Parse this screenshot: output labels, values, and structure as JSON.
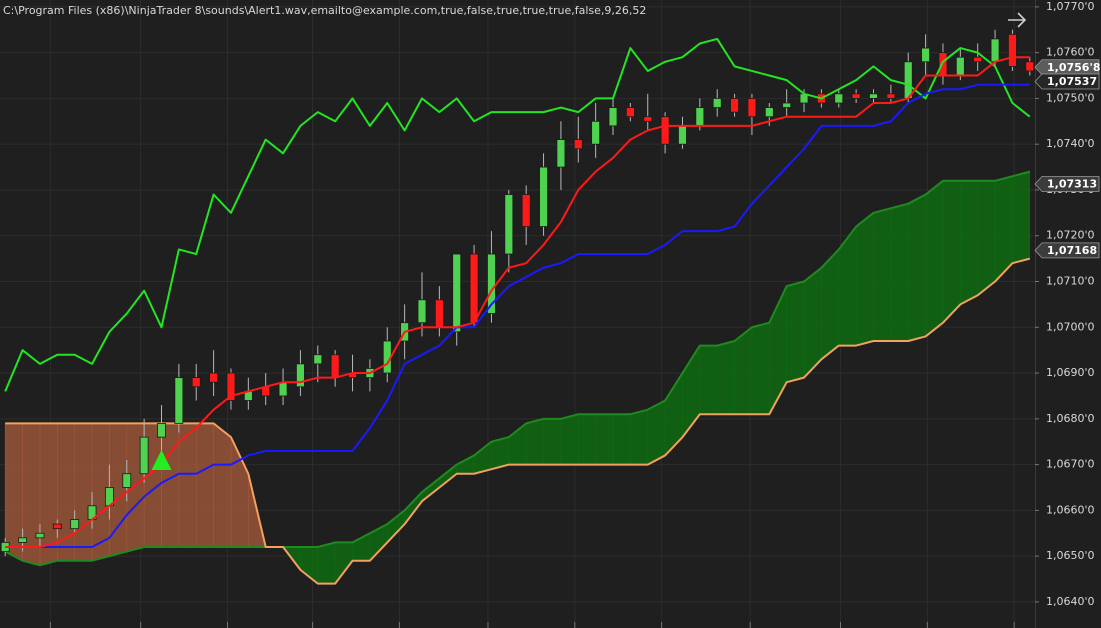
{
  "chart_data": {
    "type": "candlestick",
    "title": "C:\\Program Files (x86)\\NinjaTrader 8\\sounds\\Alert1.wav,emailto@example.com,true,false,true,true,true,false,9,26,52",
    "xlim": [
      -0.3,
      59.3
    ],
    "xticks": [
      2.6,
      7.8,
      12.8,
      17.7,
      22.7,
      27.8,
      32.8,
      37.8,
      42.9,
      48.1,
      53.1,
      58.1
    ],
    "ylim": [
      1.06343,
      1.07715
    ],
    "yticks": [
      {
        "value": 1.064,
        "label": "1,0640'0"
      },
      {
        "value": 1.065,
        "label": "1,0650'0"
      },
      {
        "value": 1.066,
        "label": "1,0660'0"
      },
      {
        "value": 1.067,
        "label": "1,0670'0"
      },
      {
        "value": 1.068,
        "label": "1,0680'0"
      },
      {
        "value": 1.069,
        "label": "1,0690'0"
      },
      {
        "value": 1.07,
        "label": "1,0700'0"
      },
      {
        "value": 1.071,
        "label": "1,0710'0"
      },
      {
        "value": 1.072,
        "label": "1,0720'0"
      },
      {
        "value": 1.073,
        "label": "1,0730'0"
      },
      {
        "value": 1.074,
        "label": "1,0740'0"
      },
      {
        "value": 1.075,
        "label": "1,0750'0"
      },
      {
        "value": 1.076,
        "label": "1,0760'0"
      },
      {
        "value": 1.077,
        "label": "1,0770'0"
      }
    ],
    "grid": true,
    "up_color": "#4fd24f",
    "down_color": "#ff1a1a",
    "open": [
      1.0651,
      1.0653,
      1.0654,
      1.0657,
      1.0656,
      1.0658,
      1.0661,
      1.0665,
      1.0668,
      1.0676,
      1.0679,
      1.0689,
      1.069,
      1.069,
      1.0684,
      1.0687,
      1.0685,
      1.0687,
      1.0692,
      1.0694,
      1.069,
      1.0689,
      1.069,
      1.0697,
      1.0701,
      1.0706,
      1.0699,
      1.0716,
      1.0703,
      1.0716,
      1.0729,
      1.0722,
      1.0735,
      1.0741,
      1.074,
      1.0744,
      1.0748,
      1.0746,
      1.0746,
      1.074,
      1.0744,
      1.0748,
      1.075,
      1.075,
      1.0746,
      1.0748,
      1.0749,
      1.0751,
      1.0749,
      1.0751,
      1.075,
      1.0751,
      1.075,
      1.0758,
      1.076,
      1.0755,
      1.0759,
      1.0758,
      1.0764,
      1.0758
    ],
    "high": [
      1.0654,
      1.0656,
      1.0657,
      1.0658,
      1.066,
      1.0664,
      1.067,
      1.0671,
      1.068,
      1.0683,
      1.0692,
      1.0692,
      1.0695,
      1.0691,
      1.0689,
      1.069,
      1.0691,
      1.0695,
      1.0696,
      1.0695,
      1.0694,
      1.0693,
      1.07,
      1.0705,
      1.0712,
      1.0709,
      1.0716,
      1.0718,
      1.0721,
      1.073,
      1.0731,
      1.0738,
      1.0745,
      1.0746,
      1.0749,
      1.075,
      1.0749,
      1.0751,
      1.0747,
      1.0746,
      1.075,
      1.0752,
      1.0751,
      1.0751,
      1.0749,
      1.0752,
      1.0752,
      1.0752,
      1.0752,
      1.0752,
      1.0752,
      1.0753,
      1.076,
      1.0764,
      1.0762,
      1.0761,
      1.0762,
      1.0765,
      1.0765,
      1.0759
    ],
    "low": [
      1.065,
      1.0651,
      1.0652,
      1.0654,
      1.0655,
      1.0656,
      1.0658,
      1.0662,
      1.0666,
      1.0673,
      1.0677,
      1.0684,
      1.0685,
      1.0682,
      1.0682,
      1.0683,
      1.0683,
      1.0685,
      1.0688,
      1.0687,
      1.0686,
      1.0686,
      1.0688,
      1.0693,
      1.0698,
      1.0698,
      1.0696,
      1.07,
      1.0701,
      1.0712,
      1.0718,
      1.072,
      1.073,
      1.0736,
      1.0737,
      1.0742,
      1.0745,
      1.0743,
      1.0738,
      1.0739,
      1.0743,
      1.0746,
      1.0746,
      1.0742,
      1.0744,
      1.0746,
      1.0747,
      1.0748,
      1.0748,
      1.0749,
      1.0749,
      1.0749,
      1.0749,
      1.0755,
      1.0753,
      1.0754,
      1.0756,
      1.0757,
      1.0756,
      1.0755
    ],
    "close": [
      1.0653,
      1.0654,
      1.0655,
      1.0656,
      1.0658,
      1.0661,
      1.0665,
      1.0668,
      1.0676,
      1.0679,
      1.0689,
      1.0687,
      1.0688,
      1.0684,
      1.0686,
      1.0685,
      1.0688,
      1.0692,
      1.0694,
      1.0689,
      1.0689,
      1.0691,
      1.0697,
      1.0701,
      1.0706,
      1.07,
      1.0716,
      1.0701,
      1.0716,
      1.0729,
      1.0722,
      1.0735,
      1.0741,
      1.0739,
      1.0745,
      1.0748,
      1.0746,
      1.0745,
      1.074,
      1.0744,
      1.0748,
      1.075,
      1.0747,
      1.0746,
      1.0748,
      1.0749,
      1.0751,
      1.0749,
      1.0751,
      1.075,
      1.0751,
      1.075,
      1.0758,
      1.0761,
      1.0755,
      1.0759,
      1.0758,
      1.0763,
      1.0757,
      1.0756
    ],
    "overlays": [
      {
        "color": "#22e622",
        "values": [
          1.0686,
          1.0695,
          1.0692,
          1.0694,
          1.0694,
          1.0692,
          1.0699,
          1.0703,
          1.0708,
          1.07,
          1.0717,
          1.0716,
          1.0729,
          1.0725,
          1.0733,
          1.0741,
          1.0738,
          1.0744,
          1.0747,
          1.0745,
          1.075,
          1.0744,
          1.0749,
          1.0743,
          1.075,
          1.0747,
          1.075,
          1.0745,
          1.0747,
          1.0747,
          1.0747,
          1.0747,
          1.0748,
          1.0747,
          1.075,
          1.075,
          1.0761,
          1.0756,
          1.0758,
          1.0759,
          1.0762,
          1.0763,
          1.0757,
          1.0756,
          1.0755,
          1.0754,
          1.0751,
          1.075,
          1.0752,
          1.0754,
          1.0757,
          1.0754,
          1.0753,
          1.075,
          1.0758,
          1.0761,
          1.076,
          1.0757,
          1.0749,
          1.0746
        ]
      },
      {
        "color": "#1a1aff",
        "values": [
          1.0652,
          1.0652,
          1.0652,
          1.0652,
          1.0652,
          1.0652,
          1.0654,
          1.0659,
          1.0663,
          1.0666,
          1.0668,
          1.0668,
          1.067,
          1.067,
          1.0672,
          1.0673,
          1.0673,
          1.0673,
          1.0673,
          1.0673,
          1.0673,
          1.0678,
          1.0684,
          1.0692,
          1.0694,
          1.0696,
          1.07,
          1.07,
          1.0705,
          1.0709,
          1.0711,
          1.0713,
          1.0714,
          1.0716,
          1.0716,
          1.0716,
          1.0716,
          1.0716,
          1.0718,
          1.0721,
          1.0721,
          1.0721,
          1.0722,
          1.0727,
          1.0731,
          1.0735,
          1.0739,
          1.0744,
          1.0744,
          1.0744,
          1.0744,
          1.0745,
          1.0749,
          1.0751,
          1.0752,
          1.0752,
          1.0753,
          1.0753,
          1.0753,
          1.0753
        ]
      },
      {
        "color": "#ff1a1a",
        "values": [
          1.0652,
          1.0652,
          1.0652,
          1.0653,
          1.0655,
          1.0658,
          1.0661,
          1.0664,
          1.0667,
          1.067,
          1.0675,
          1.0678,
          1.0682,
          1.0685,
          1.0686,
          1.0687,
          1.0688,
          1.0688,
          1.0689,
          1.0689,
          1.069,
          1.069,
          1.0692,
          1.0699,
          1.07,
          1.07,
          1.07,
          1.0701,
          1.0708,
          1.0713,
          1.0714,
          1.0718,
          1.0723,
          1.073,
          1.0734,
          1.0737,
          1.0741,
          1.0743,
          1.0744,
          1.0744,
          1.0744,
          1.0744,
          1.0744,
          1.0744,
          1.0745,
          1.0746,
          1.0746,
          1.0746,
          1.0746,
          1.0746,
          1.0749,
          1.0749,
          1.075,
          1.0755,
          1.0755,
          1.0755,
          1.0755,
          1.0758,
          1.0759,
          1.0759
        ]
      }
    ],
    "cloud": {
      "up_fill": "#0f6b12",
      "down_fill": "#a0583a",
      "span_a": {
        "color": "#1f8a1f",
        "values": [
          1.0651,
          1.0649,
          1.0648,
          1.0649,
          1.0649,
          1.0649,
          1.065,
          1.0651,
          1.0652,
          1.0652,
          1.0652,
          1.0652,
          1.0652,
          1.0652,
          1.0652,
          1.0652,
          1.0652,
          1.0652,
          1.0652,
          1.0653,
          1.0653,
          1.0655,
          1.0657,
          1.066,
          1.0664,
          1.0667,
          1.067,
          1.0672,
          1.0675,
          1.0676,
          1.0679,
          1.068,
          1.068,
          1.0681,
          1.0681,
          1.0681,
          1.0681,
          1.0682,
          1.0684,
          1.069,
          1.0696,
          1.0696,
          1.0697,
          1.07,
          1.0701,
          1.0709,
          1.071,
          1.0713,
          1.0717,
          1.0722,
          1.0725,
          1.0726,
          1.0727,
          1.0729,
          1.0732,
          1.0732,
          1.0732,
          1.0732,
          1.0733,
          1.0734
        ]
      },
      "span_b": {
        "color": "#f4a060",
        "values": [
          1.0679,
          1.0679,
          1.0679,
          1.0679,
          1.0679,
          1.0679,
          1.0679,
          1.0679,
          1.0679,
          1.0679,
          1.0679,
          1.0679,
          1.0679,
          1.0676,
          1.0668,
          1.0652,
          1.0652,
          1.0647,
          1.0644,
          1.0644,
          1.0649,
          1.0649,
          1.0653,
          1.0657,
          1.0662,
          1.0665,
          1.0668,
          1.0668,
          1.0669,
          1.067,
          1.067,
          1.067,
          1.067,
          1.067,
          1.067,
          1.067,
          1.067,
          1.067,
          1.0672,
          1.0676,
          1.0681,
          1.0681,
          1.0681,
          1.0681,
          1.0681,
          1.0688,
          1.0689,
          1.0693,
          1.0696,
          1.0696,
          1.0697,
          1.0697,
          1.0697,
          1.0698,
          1.0701,
          1.0705,
          1.0707,
          1.071,
          1.0714,
          1.0715
        ]
      }
    },
    "signals": [
      {
        "x": 9,
        "value": 1.0671,
        "color": "#22ee22"
      }
    ],
    "price_markers": [
      {
        "value": 1.07568,
        "label": "1,0756'8",
        "fill": "#5c5c5c"
      },
      {
        "value": 1.07537,
        "label": "1,07537",
        "fill": "#262626"
      },
      {
        "value": 1.07313,
        "label": "1,07313",
        "fill": "#3c3c3c"
      },
      {
        "value": 1.07168,
        "label": "1,07168",
        "fill": "#3c3c3c"
      }
    ]
  }
}
